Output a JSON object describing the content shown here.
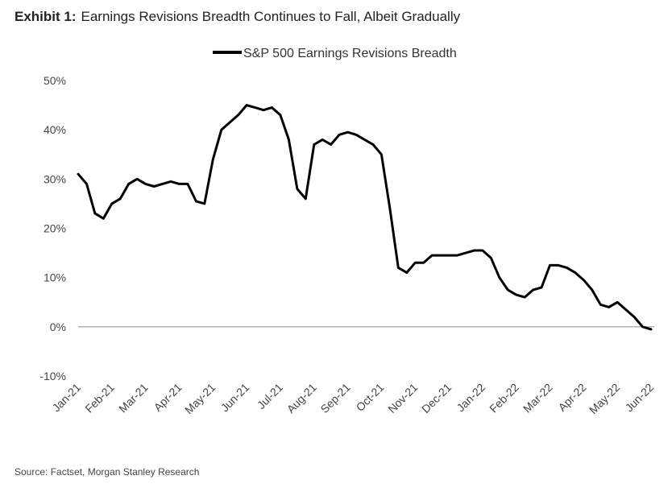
{
  "chart_data": {
    "type": "line",
    "exhibit": "Exhibit 1:",
    "title": "Earnings Revisions Breadth Continues to Fall, Albeit Gradually",
    "source": "Source: Factset, Morgan Stanley Research",
    "categories": [
      "Jan-21",
      null,
      null,
      null,
      "Feb-21",
      null,
      null,
      null,
      "Mar-21",
      null,
      null,
      null,
      "Apr-21",
      null,
      null,
      null,
      "May-21",
      null,
      null,
      null,
      "Jun-21",
      null,
      null,
      null,
      "Jul-21",
      null,
      null,
      null,
      "Aug-21",
      null,
      null,
      null,
      "Sep-21",
      null,
      null,
      null,
      "Oct-21",
      null,
      null,
      null,
      "Nov-21",
      null,
      null,
      null,
      "Dec-21",
      null,
      null,
      null,
      "Jan-22",
      null,
      null,
      null,
      "Feb-22",
      null,
      null,
      null,
      "Mar-22",
      null,
      null,
      null,
      "Apr-22",
      null,
      null,
      null,
      "May-22",
      null,
      null,
      null,
      "Jun-22"
    ],
    "series": [
      {
        "name": "S&P 500 Earnings Revisions Breadth",
        "color": "#000000",
        "values": [
          31,
          29,
          23,
          22,
          25,
          26,
          29,
          30,
          29,
          28.5,
          29,
          29.5,
          29,
          29,
          25.5,
          25,
          34,
          40,
          41.5,
          43,
          45,
          44.5,
          44,
          44.5,
          43,
          38,
          28,
          26,
          37,
          38,
          37,
          39,
          39.5,
          39,
          38,
          37,
          35,
          24,
          12,
          11,
          13,
          13,
          14.5,
          14.5,
          14.5,
          14.5,
          15,
          15.5,
          15.5,
          14,
          10,
          7.5,
          6.5,
          6,
          7.5,
          8,
          12.5,
          12.5,
          12,
          11,
          9.5,
          7.5,
          4.5,
          4,
          5,
          3.5,
          2,
          0,
          -0.5
        ]
      }
    ],
    "ylim": [
      -10,
      50
    ],
    "yticks": [
      {
        "value": -10,
        "label": "-10%"
      },
      {
        "value": 0,
        "label": "0%"
      },
      {
        "value": 10,
        "label": "10%"
      },
      {
        "value": 20,
        "label": "20%"
      },
      {
        "value": 30,
        "label": "30%"
      },
      {
        "value": 40,
        "label": "40%"
      },
      {
        "value": 50,
        "label": "50%"
      }
    ],
    "zero_line": true,
    "grid": false
  }
}
